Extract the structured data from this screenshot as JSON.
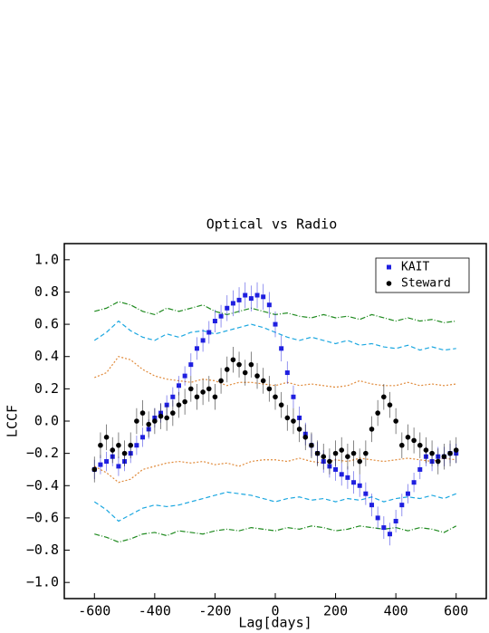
{
  "chart_data": {
    "type": "scatter",
    "title": "Optical vs Radio",
    "xlabel": "Lag[days]",
    "ylabel": "LCCF",
    "xlim": [
      -700,
      700
    ],
    "ylim": [
      -1.1,
      1.1
    ],
    "xticks": [
      -600,
      -400,
      -200,
      0,
      200,
      400,
      600
    ],
    "yticks": [
      {
        "value": -1.0,
        "label": "−1.0"
      },
      {
        "value": -0.8,
        "label": "−0.8"
      },
      {
        "value": -0.6,
        "label": "−0.6"
      },
      {
        "value": -0.4,
        "label": "−0.4"
      },
      {
        "value": -0.2,
        "label": "−0.2"
      },
      {
        "value": 0.0,
        "label": "0.0"
      },
      {
        "value": 0.2,
        "label": "0.2"
      },
      {
        "value": 0.4,
        "label": "0.4"
      },
      {
        "value": 0.6,
        "label": "0.6"
      },
      {
        "value": 0.8,
        "label": "0.8"
      },
      {
        "value": 1.0,
        "label": "1.0"
      }
    ],
    "legend": "upper right",
    "x": [
      -600,
      -580,
      -560,
      -540,
      -520,
      -500,
      -480,
      -460,
      -440,
      -420,
      -400,
      -380,
      -360,
      -340,
      -320,
      -300,
      -280,
      -260,
      -240,
      -220,
      -200,
      -180,
      -160,
      -140,
      -120,
      -100,
      -80,
      -60,
      -40,
      -20,
      0,
      20,
      40,
      60,
      80,
      100,
      120,
      140,
      160,
      180,
      200,
      220,
      240,
      260,
      280,
      300,
      320,
      340,
      360,
      380,
      400,
      420,
      440,
      460,
      480,
      500,
      520,
      540,
      560,
      580,
      600
    ],
    "series": [
      {
        "name": "KAIT",
        "color": "#1f1fe0",
        "marker": "square",
        "values": [
          -0.3,
          -0.27,
          -0.25,
          -0.22,
          -0.28,
          -0.25,
          -0.2,
          -0.15,
          -0.1,
          -0.05,
          0.02,
          0.05,
          0.1,
          0.15,
          0.22,
          0.28,
          0.35,
          0.45,
          0.5,
          0.55,
          0.62,
          0.65,
          0.7,
          0.73,
          0.75,
          0.78,
          0.76,
          0.78,
          0.77,
          0.72,
          0.6,
          0.45,
          0.3,
          0.15,
          0.02,
          -0.08,
          -0.15,
          -0.2,
          -0.25,
          -0.28,
          -0.3,
          -0.33,
          -0.35,
          -0.38,
          -0.4,
          -0.45,
          -0.52,
          -0.6,
          -0.66,
          -0.7,
          -0.62,
          -0.52,
          -0.45,
          -0.38,
          -0.3,
          -0.22,
          -0.25,
          -0.22,
          -0.22,
          -0.2,
          -0.2
        ],
        "errors": [
          0.06,
          0.06,
          0.06,
          0.06,
          0.06,
          0.06,
          0.06,
          0.06,
          0.06,
          0.06,
          0.06,
          0.06,
          0.06,
          0.06,
          0.06,
          0.06,
          0.07,
          0.07,
          0.07,
          0.07,
          0.07,
          0.07,
          0.08,
          0.08,
          0.08,
          0.08,
          0.08,
          0.08,
          0.08,
          0.08,
          0.08,
          0.08,
          0.07,
          0.07,
          0.07,
          0.07,
          0.07,
          0.07,
          0.07,
          0.07,
          0.07,
          0.07,
          0.07,
          0.07,
          0.07,
          0.07,
          0.07,
          0.07,
          0.07,
          0.07,
          0.07,
          0.07,
          0.06,
          0.06,
          0.06,
          0.06,
          0.06,
          0.06,
          0.06,
          0.06,
          0.06
        ]
      },
      {
        "name": "Steward",
        "color": "#000000",
        "marker": "circle",
        "values": [
          -0.3,
          -0.15,
          -0.1,
          -0.18,
          -0.15,
          -0.2,
          -0.15,
          0.0,
          0.05,
          -0.02,
          0.0,
          0.03,
          0.02,
          0.05,
          0.1,
          0.12,
          0.2,
          0.15,
          0.18,
          0.2,
          0.15,
          0.25,
          0.32,
          0.38,
          0.35,
          0.3,
          0.35,
          0.28,
          0.25,
          0.2,
          0.15,
          0.1,
          0.02,
          0.0,
          -0.05,
          -0.1,
          -0.15,
          -0.2,
          -0.22,
          -0.25,
          -0.2,
          -0.18,
          -0.22,
          -0.2,
          -0.25,
          -0.2,
          -0.05,
          0.05,
          0.15,
          0.1,
          0.0,
          -0.15,
          -0.1,
          -0.12,
          -0.15,
          -0.18,
          -0.2,
          -0.25,
          -0.22,
          -0.2,
          -0.18
        ],
        "errors": [
          0.08,
          0.08,
          0.08,
          0.08,
          0.08,
          0.08,
          0.08,
          0.08,
          0.08,
          0.08,
          0.08,
          0.08,
          0.08,
          0.08,
          0.08,
          0.08,
          0.08,
          0.08,
          0.08,
          0.08,
          0.08,
          0.08,
          0.08,
          0.08,
          0.08,
          0.08,
          0.08,
          0.08,
          0.08,
          0.08,
          0.08,
          0.08,
          0.08,
          0.08,
          0.08,
          0.08,
          0.08,
          0.08,
          0.08,
          0.08,
          0.08,
          0.08,
          0.08,
          0.08,
          0.08,
          0.08,
          0.08,
          0.08,
          0.08,
          0.08,
          0.08,
          0.08,
          0.08,
          0.08,
          0.08,
          0.08,
          0.08,
          0.08,
          0.08,
          0.08,
          0.08
        ]
      }
    ],
    "ref_x": [
      -600,
      -560,
      -520,
      -480,
      -440,
      -400,
      -360,
      -320,
      -280,
      -240,
      -200,
      -160,
      -120,
      -80,
      -40,
      0,
      40,
      80,
      120,
      160,
      200,
      240,
      280,
      320,
      360,
      400,
      440,
      480,
      520,
      560,
      600
    ],
    "reference_lines": [
      {
        "color": "#1f8a1f",
        "dash": "6 2 1 2",
        "values": [
          0.68,
          0.7,
          0.74,
          0.72,
          0.68,
          0.66,
          0.7,
          0.68,
          0.7,
          0.72,
          0.68,
          0.66,
          0.68,
          0.7,
          0.68,
          0.66,
          0.67,
          0.65,
          0.64,
          0.66,
          0.64,
          0.65,
          0.63,
          0.66,
          0.64,
          0.62,
          0.64,
          0.62,
          0.63,
          0.61,
          0.62
        ]
      },
      {
        "color": "#1ba7e0",
        "dash": "5 3",
        "values": [
          0.5,
          0.55,
          0.62,
          0.56,
          0.52,
          0.5,
          0.54,
          0.52,
          0.55,
          0.56,
          0.54,
          0.56,
          0.58,
          0.6,
          0.58,
          0.55,
          0.52,
          0.5,
          0.52,
          0.5,
          0.48,
          0.5,
          0.47,
          0.48,
          0.46,
          0.45,
          0.47,
          0.44,
          0.46,
          0.44,
          0.45
        ]
      },
      {
        "color": "#e08a3a",
        "dash": "2 2",
        "values": [
          0.27,
          0.3,
          0.4,
          0.38,
          0.32,
          0.28,
          0.26,
          0.25,
          0.24,
          0.26,
          0.25,
          0.22,
          0.24,
          0.24,
          0.23,
          0.22,
          0.24,
          0.22,
          0.23,
          0.22,
          0.21,
          0.22,
          0.25,
          0.23,
          0.22,
          0.22,
          0.24,
          0.22,
          0.23,
          0.22,
          0.23
        ]
      },
      {
        "color": "#e08a3a",
        "dash": "2 2",
        "values": [
          -0.28,
          -0.32,
          -0.38,
          -0.36,
          -0.3,
          -0.28,
          -0.26,
          -0.25,
          -0.26,
          -0.25,
          -0.27,
          -0.26,
          -0.28,
          -0.25,
          -0.24,
          -0.24,
          -0.25,
          -0.23,
          -0.25,
          -0.26,
          -0.24,
          -0.25,
          -0.23,
          -0.24,
          -0.25,
          -0.24,
          -0.23,
          -0.24,
          -0.25,
          -0.23,
          -0.24
        ]
      },
      {
        "color": "#1ba7e0",
        "dash": "5 3",
        "values": [
          -0.5,
          -0.55,
          -0.62,
          -0.58,
          -0.54,
          -0.52,
          -0.53,
          -0.52,
          -0.5,
          -0.48,
          -0.46,
          -0.44,
          -0.45,
          -0.46,
          -0.48,
          -0.5,
          -0.48,
          -0.47,
          -0.49,
          -0.48,
          -0.5,
          -0.48,
          -0.49,
          -0.47,
          -0.5,
          -0.48,
          -0.47,
          -0.48,
          -0.46,
          -0.48,
          -0.45
        ]
      },
      {
        "color": "#1f8a1f",
        "dash": "6 2 1 2",
        "values": [
          -0.7,
          -0.72,
          -0.75,
          -0.73,
          -0.7,
          -0.69,
          -0.71,
          -0.68,
          -0.69,
          -0.7,
          -0.68,
          -0.67,
          -0.68,
          -0.66,
          -0.67,
          -0.68,
          -0.66,
          -0.67,
          -0.65,
          -0.66,
          -0.68,
          -0.67,
          -0.65,
          -0.66,
          -0.67,
          -0.66,
          -0.68,
          -0.66,
          -0.67,
          -0.69,
          -0.65
        ]
      }
    ]
  }
}
